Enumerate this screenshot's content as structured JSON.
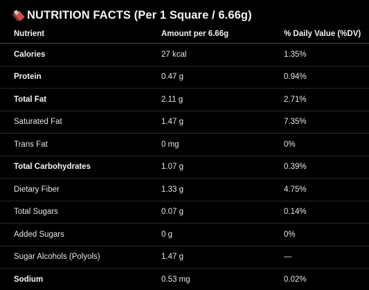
{
  "header": {
    "icon": "chocolate-bar-icon",
    "title": "NUTRITION FACTS (Per 1 Square / 6.66g)"
  },
  "table": {
    "columns": [
      "Nutrient",
      "Amount per 6.66g",
      "% Daily Value (%DV)"
    ],
    "rows": [
      {
        "nutrient": "Calories",
        "amount": "27 kcal",
        "dv": "1.35%",
        "bold": true
      },
      {
        "nutrient": "Protein",
        "amount": "0.47 g",
        "dv": "0.94%",
        "bold": true
      },
      {
        "nutrient": "Total Fat",
        "amount": "2.11 g",
        "dv": "2.71%",
        "bold": true
      },
      {
        "nutrient": "Saturated Fat",
        "amount": "1.47 g",
        "dv": "7.35%",
        "bold": false
      },
      {
        "nutrient": "Trans Fat",
        "amount": "0 mg",
        "dv": "0%",
        "bold": false
      },
      {
        "nutrient": "Total Carbohydrates",
        "amount": "1.07 g",
        "dv": "0.39%",
        "bold": true
      },
      {
        "nutrient": "Dietary Fiber",
        "amount": "1.33 g",
        "dv": "4.75%",
        "bold": false
      },
      {
        "nutrient": "Total Sugars",
        "amount": "0.07 g",
        "dv": "0.14%",
        "bold": false
      },
      {
        "nutrient": "Added Sugars",
        "amount": "0 g",
        "dv": "0%",
        "bold": false
      },
      {
        "nutrient": "Sugar Alcohols (Polyols)",
        "amount": "1.47 g",
        "dv": "—",
        "bold": false
      },
      {
        "nutrient": "Sodium",
        "amount": "0.53 mg",
        "dv": "0.02%",
        "bold": true
      }
    ]
  }
}
